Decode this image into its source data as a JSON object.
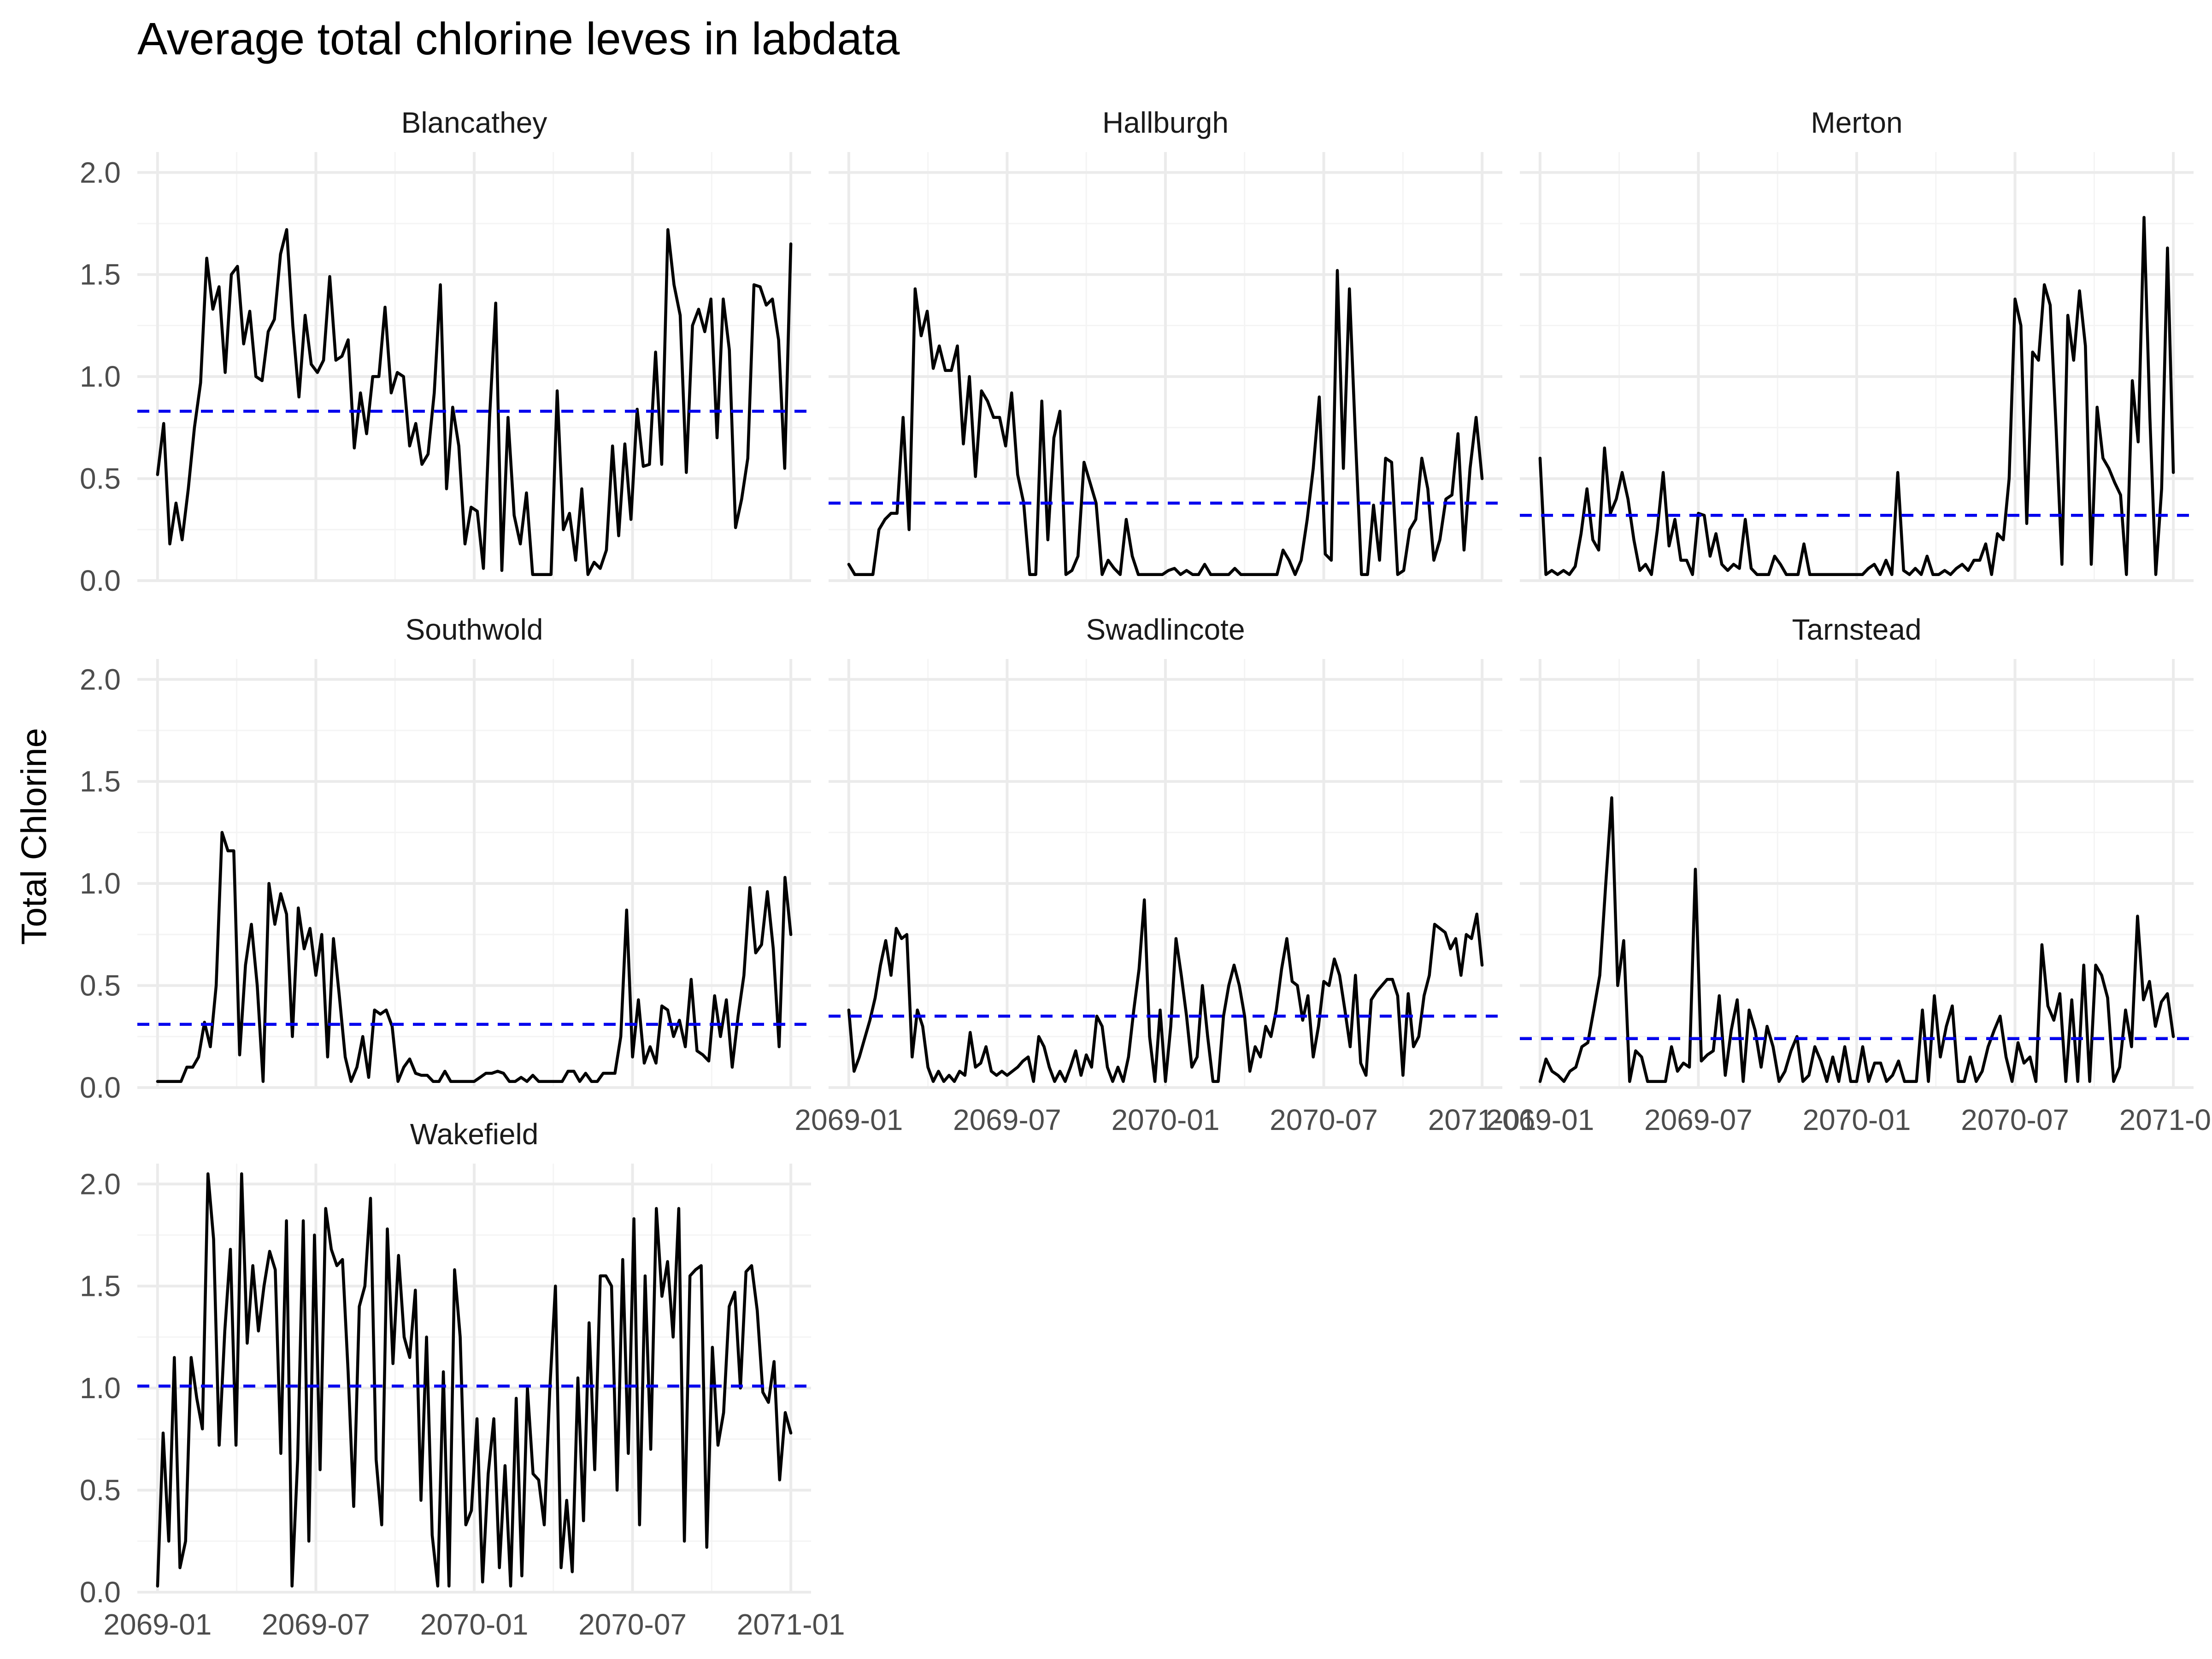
{
  "chart_data": {
    "type": "line",
    "title": "Average total chlorine leves in labdata",
    "xlabel": "",
    "ylabel": "Total Chlorine",
    "x_range": [
      "2069-01",
      "2071-01"
    ],
    "ylim": [
      0,
      2.1
    ],
    "x_ticks": [
      "2069-01",
      "2069-07",
      "2070-01",
      "2070-07",
      "2071-01"
    ],
    "y_ticks": [
      "0.0",
      "0.5",
      "1.0",
      "1.5",
      "2.0"
    ],
    "grid": true,
    "facet_layout": "3 columns, 3 rows",
    "colors": {
      "series": "#000000",
      "mean_line": "#0000ee",
      "grid": "#ebebeb"
    },
    "panels": [
      {
        "name": "Blancathey",
        "mean": 0.83,
        "values": [
          0.52,
          0.77,
          0.18,
          0.38,
          0.2,
          0.45,
          0.75,
          0.97,
          1.58,
          1.33,
          1.44,
          1.02,
          1.5,
          1.54,
          1.16,
          1.32,
          1.0,
          0.98,
          1.22,
          1.28,
          1.6,
          1.72,
          1.25,
          0.9,
          1.3,
          1.06,
          1.02,
          1.08,
          1.49,
          1.08,
          1.1,
          1.18,
          0.65,
          0.92,
          0.72,
          1.0,
          1.0,
          1.34,
          0.92,
          1.02,
          1.0,
          0.66,
          0.77,
          0.57,
          0.62,
          0.92,
          1.45,
          0.45,
          0.85,
          0.66,
          0.18,
          0.36,
          0.34,
          0.06,
          0.8,
          1.36,
          0.05,
          0.8,
          0.32,
          0.18,
          0.43,
          0.03,
          0.03,
          0.03,
          0.03,
          0.93,
          0.25,
          0.33,
          0.1,
          0.45,
          0.03,
          0.09,
          0.06,
          0.15,
          0.66,
          0.22,
          0.67,
          0.3,
          0.84,
          0.56,
          0.57,
          1.12,
          0.57,
          1.72,
          1.45,
          1.3,
          0.53,
          1.25,
          1.33,
          1.22,
          1.38,
          0.7,
          1.38,
          1.13,
          0.26,
          0.4,
          0.6,
          1.45,
          1.44,
          1.35,
          1.38,
          1.18,
          0.55,
          1.65
        ]
      },
      {
        "name": "Hallburgh",
        "mean": 0.38,
        "values": [
          0.08,
          0.03,
          0.03,
          0.03,
          0.03,
          0.25,
          0.3,
          0.33,
          0.33,
          0.8,
          0.25,
          1.43,
          1.2,
          1.32,
          1.04,
          1.15,
          1.03,
          1.03,
          1.15,
          0.67,
          1.0,
          0.51,
          0.93,
          0.88,
          0.8,
          0.8,
          0.66,
          0.92,
          0.52,
          0.38,
          0.03,
          0.03,
          0.88,
          0.2,
          0.7,
          0.83,
          0.03,
          0.05,
          0.12,
          0.58,
          0.48,
          0.38,
          0.03,
          0.1,
          0.06,
          0.03,
          0.3,
          0.12,
          0.03,
          0.03,
          0.03,
          0.03,
          0.03,
          0.05,
          0.06,
          0.03,
          0.05,
          0.03,
          0.03,
          0.08,
          0.03,
          0.03,
          0.03,
          0.03,
          0.06,
          0.03,
          0.03,
          0.03,
          0.03,
          0.03,
          0.03,
          0.03,
          0.15,
          0.1,
          0.03,
          0.1,
          0.3,
          0.55,
          0.9,
          0.13,
          0.1,
          1.52,
          0.55,
          1.43,
          0.7,
          0.03,
          0.03,
          0.37,
          0.1,
          0.6,
          0.58,
          0.03,
          0.05,
          0.25,
          0.3,
          0.6,
          0.45,
          0.1,
          0.2,
          0.4,
          0.42,
          0.72,
          0.15,
          0.55,
          0.8,
          0.5
        ]
      },
      {
        "name": "Merton",
        "mean": 0.32,
        "values": [
          0.6,
          0.03,
          0.05,
          0.03,
          0.05,
          0.03,
          0.07,
          0.23,
          0.45,
          0.2,
          0.15,
          0.65,
          0.33,
          0.4,
          0.53,
          0.4,
          0.2,
          0.05,
          0.08,
          0.03,
          0.25,
          0.53,
          0.17,
          0.3,
          0.1,
          0.1,
          0.03,
          0.33,
          0.32,
          0.12,
          0.23,
          0.08,
          0.05,
          0.08,
          0.06,
          0.3,
          0.06,
          0.03,
          0.03,
          0.03,
          0.12,
          0.08,
          0.03,
          0.03,
          0.03,
          0.18,
          0.03,
          0.03,
          0.03,
          0.03,
          0.03,
          0.03,
          0.03,
          0.03,
          0.03,
          0.03,
          0.06,
          0.08,
          0.03,
          0.1,
          0.03,
          0.53,
          0.05,
          0.03,
          0.06,
          0.03,
          0.12,
          0.03,
          0.03,
          0.05,
          0.03,
          0.06,
          0.08,
          0.05,
          0.1,
          0.1,
          0.18,
          0.03,
          0.23,
          0.2,
          0.5,
          1.38,
          1.25,
          0.28,
          1.12,
          1.08,
          1.45,
          1.35,
          0.75,
          0.08,
          1.3,
          1.08,
          1.42,
          1.15,
          0.08,
          0.85,
          0.6,
          0.55,
          0.48,
          0.42,
          0.03,
          0.98,
          0.68,
          1.78,
          0.8,
          0.03,
          0.45,
          1.63,
          0.53
        ]
      },
      {
        "name": "Southwold",
        "mean": 0.31,
        "values": [
          0.03,
          0.03,
          0.03,
          0.03,
          0.03,
          0.1,
          0.1,
          0.15,
          0.32,
          0.2,
          0.5,
          1.25,
          1.16,
          1.16,
          0.16,
          0.6,
          0.8,
          0.5,
          0.03,
          1.0,
          0.8,
          0.95,
          0.85,
          0.25,
          0.88,
          0.68,
          0.78,
          0.55,
          0.75,
          0.15,
          0.73,
          0.45,
          0.15,
          0.03,
          0.1,
          0.25,
          0.05,
          0.38,
          0.36,
          0.38,
          0.3,
          0.03,
          0.1,
          0.14,
          0.07,
          0.06,
          0.06,
          0.03,
          0.03,
          0.08,
          0.03,
          0.03,
          0.03,
          0.03,
          0.03,
          0.05,
          0.07,
          0.07,
          0.08,
          0.07,
          0.03,
          0.03,
          0.05,
          0.03,
          0.06,
          0.03,
          0.03,
          0.03,
          0.03,
          0.03,
          0.08,
          0.08,
          0.03,
          0.07,
          0.03,
          0.03,
          0.07,
          0.07,
          0.07,
          0.25,
          0.87,
          0.15,
          0.43,
          0.12,
          0.2,
          0.12,
          0.4,
          0.38,
          0.25,
          0.33,
          0.2,
          0.53,
          0.18,
          0.16,
          0.13,
          0.45,
          0.25,
          0.43,
          0.1,
          0.35,
          0.55,
          0.98,
          0.66,
          0.7,
          0.96,
          0.68,
          0.2,
          1.03,
          0.75
        ]
      },
      {
        "name": "Swadlincote",
        "mean": 0.35,
        "values": [
          0.38,
          0.08,
          0.15,
          0.24,
          0.33,
          0.44,
          0.6,
          0.72,
          0.55,
          0.78,
          0.73,
          0.75,
          0.15,
          0.38,
          0.3,
          0.1,
          0.03,
          0.08,
          0.03,
          0.06,
          0.03,
          0.08,
          0.06,
          0.27,
          0.1,
          0.12,
          0.2,
          0.08,
          0.06,
          0.08,
          0.06,
          0.08,
          0.1,
          0.13,
          0.15,
          0.03,
          0.25,
          0.2,
          0.1,
          0.03,
          0.08,
          0.03,
          0.1,
          0.18,
          0.06,
          0.16,
          0.1,
          0.35,
          0.3,
          0.1,
          0.03,
          0.1,
          0.03,
          0.15,
          0.38,
          0.58,
          0.92,
          0.25,
          0.03,
          0.38,
          0.03,
          0.3,
          0.73,
          0.55,
          0.35,
          0.1,
          0.15,
          0.5,
          0.25,
          0.03,
          0.03,
          0.35,
          0.5,
          0.6,
          0.5,
          0.35,
          0.08,
          0.2,
          0.15,
          0.3,
          0.25,
          0.38,
          0.58,
          0.73,
          0.52,
          0.5,
          0.33,
          0.45,
          0.15,
          0.3,
          0.52,
          0.5,
          0.63,
          0.55,
          0.38,
          0.2,
          0.55,
          0.12,
          0.06,
          0.43,
          0.47,
          0.5,
          0.53,
          0.53,
          0.45,
          0.06,
          0.46,
          0.2,
          0.25,
          0.45,
          0.55,
          0.8,
          0.78,
          0.76,
          0.68,
          0.73,
          0.55,
          0.75,
          0.73,
          0.85,
          0.6
        ]
      },
      {
        "name": "Tarnstead",
        "mean": 0.24,
        "values": [
          0.03,
          0.14,
          0.08,
          0.06,
          0.03,
          0.08,
          0.1,
          0.2,
          0.22,
          0.38,
          0.55,
          1.0,
          1.42,
          0.5,
          0.72,
          0.03,
          0.18,
          0.15,
          0.03,
          0.03,
          0.03,
          0.03,
          0.2,
          0.08,
          0.12,
          0.1,
          1.07,
          0.13,
          0.16,
          0.18,
          0.45,
          0.06,
          0.28,
          0.43,
          0.03,
          0.38,
          0.28,
          0.1,
          0.3,
          0.2,
          0.03,
          0.08,
          0.18,
          0.25,
          0.03,
          0.06,
          0.2,
          0.13,
          0.03,
          0.15,
          0.03,
          0.2,
          0.03,
          0.03,
          0.2,
          0.03,
          0.12,
          0.12,
          0.03,
          0.06,
          0.13,
          0.03,
          0.03,
          0.03,
          0.38,
          0.03,
          0.45,
          0.15,
          0.3,
          0.4,
          0.03,
          0.03,
          0.15,
          0.03,
          0.08,
          0.2,
          0.28,
          0.35,
          0.15,
          0.03,
          0.22,
          0.12,
          0.15,
          0.03,
          0.7,
          0.4,
          0.33,
          0.46,
          0.03,
          0.43,
          0.03,
          0.6,
          0.03,
          0.6,
          0.55,
          0.44,
          0.03,
          0.1,
          0.38,
          0.2,
          0.84,
          0.43,
          0.52,
          0.3,
          0.42,
          0.46,
          0.25
        ]
      },
      {
        "name": "Wakefield",
        "mean": 1.01,
        "values": [
          0.03,
          0.78,
          0.25,
          1.15,
          0.12,
          0.25,
          1.15,
          0.95,
          0.8,
          2.05,
          1.73,
          0.72,
          1.28,
          1.68,
          0.72,
          2.05,
          1.22,
          1.6,
          1.28,
          1.5,
          1.67,
          1.58,
          0.68,
          1.82,
          0.03,
          0.65,
          1.82,
          0.25,
          1.75,
          0.6,
          1.88,
          1.68,
          1.6,
          1.63,
          1.08,
          0.42,
          1.4,
          1.5,
          1.93,
          0.65,
          0.33,
          1.78,
          1.12,
          1.65,
          1.25,
          1.15,
          1.48,
          0.45,
          1.25,
          0.28,
          0.03,
          1.08,
          0.03,
          1.58,
          1.25,
          0.33,
          0.4,
          0.85,
          0.05,
          0.58,
          0.85,
          0.12,
          0.62,
          0.03,
          0.95,
          0.08,
          1.0,
          0.58,
          0.55,
          0.33,
          1.0,
          1.5,
          0.12,
          0.45,
          0.1,
          1.05,
          0.35,
          1.32,
          0.6,
          1.55,
          1.55,
          1.5,
          0.5,
          1.63,
          0.68,
          1.83,
          0.33,
          1.55,
          0.7,
          1.88,
          1.45,
          1.62,
          1.25,
          1.88,
          0.25,
          1.55,
          1.58,
          1.6,
          0.22,
          1.2,
          0.72,
          0.88,
          1.4,
          1.47,
          1.0,
          1.57,
          1.6,
          1.38,
          0.98,
          0.93,
          1.13,
          0.55,
          0.88,
          0.78
        ]
      }
    ]
  }
}
